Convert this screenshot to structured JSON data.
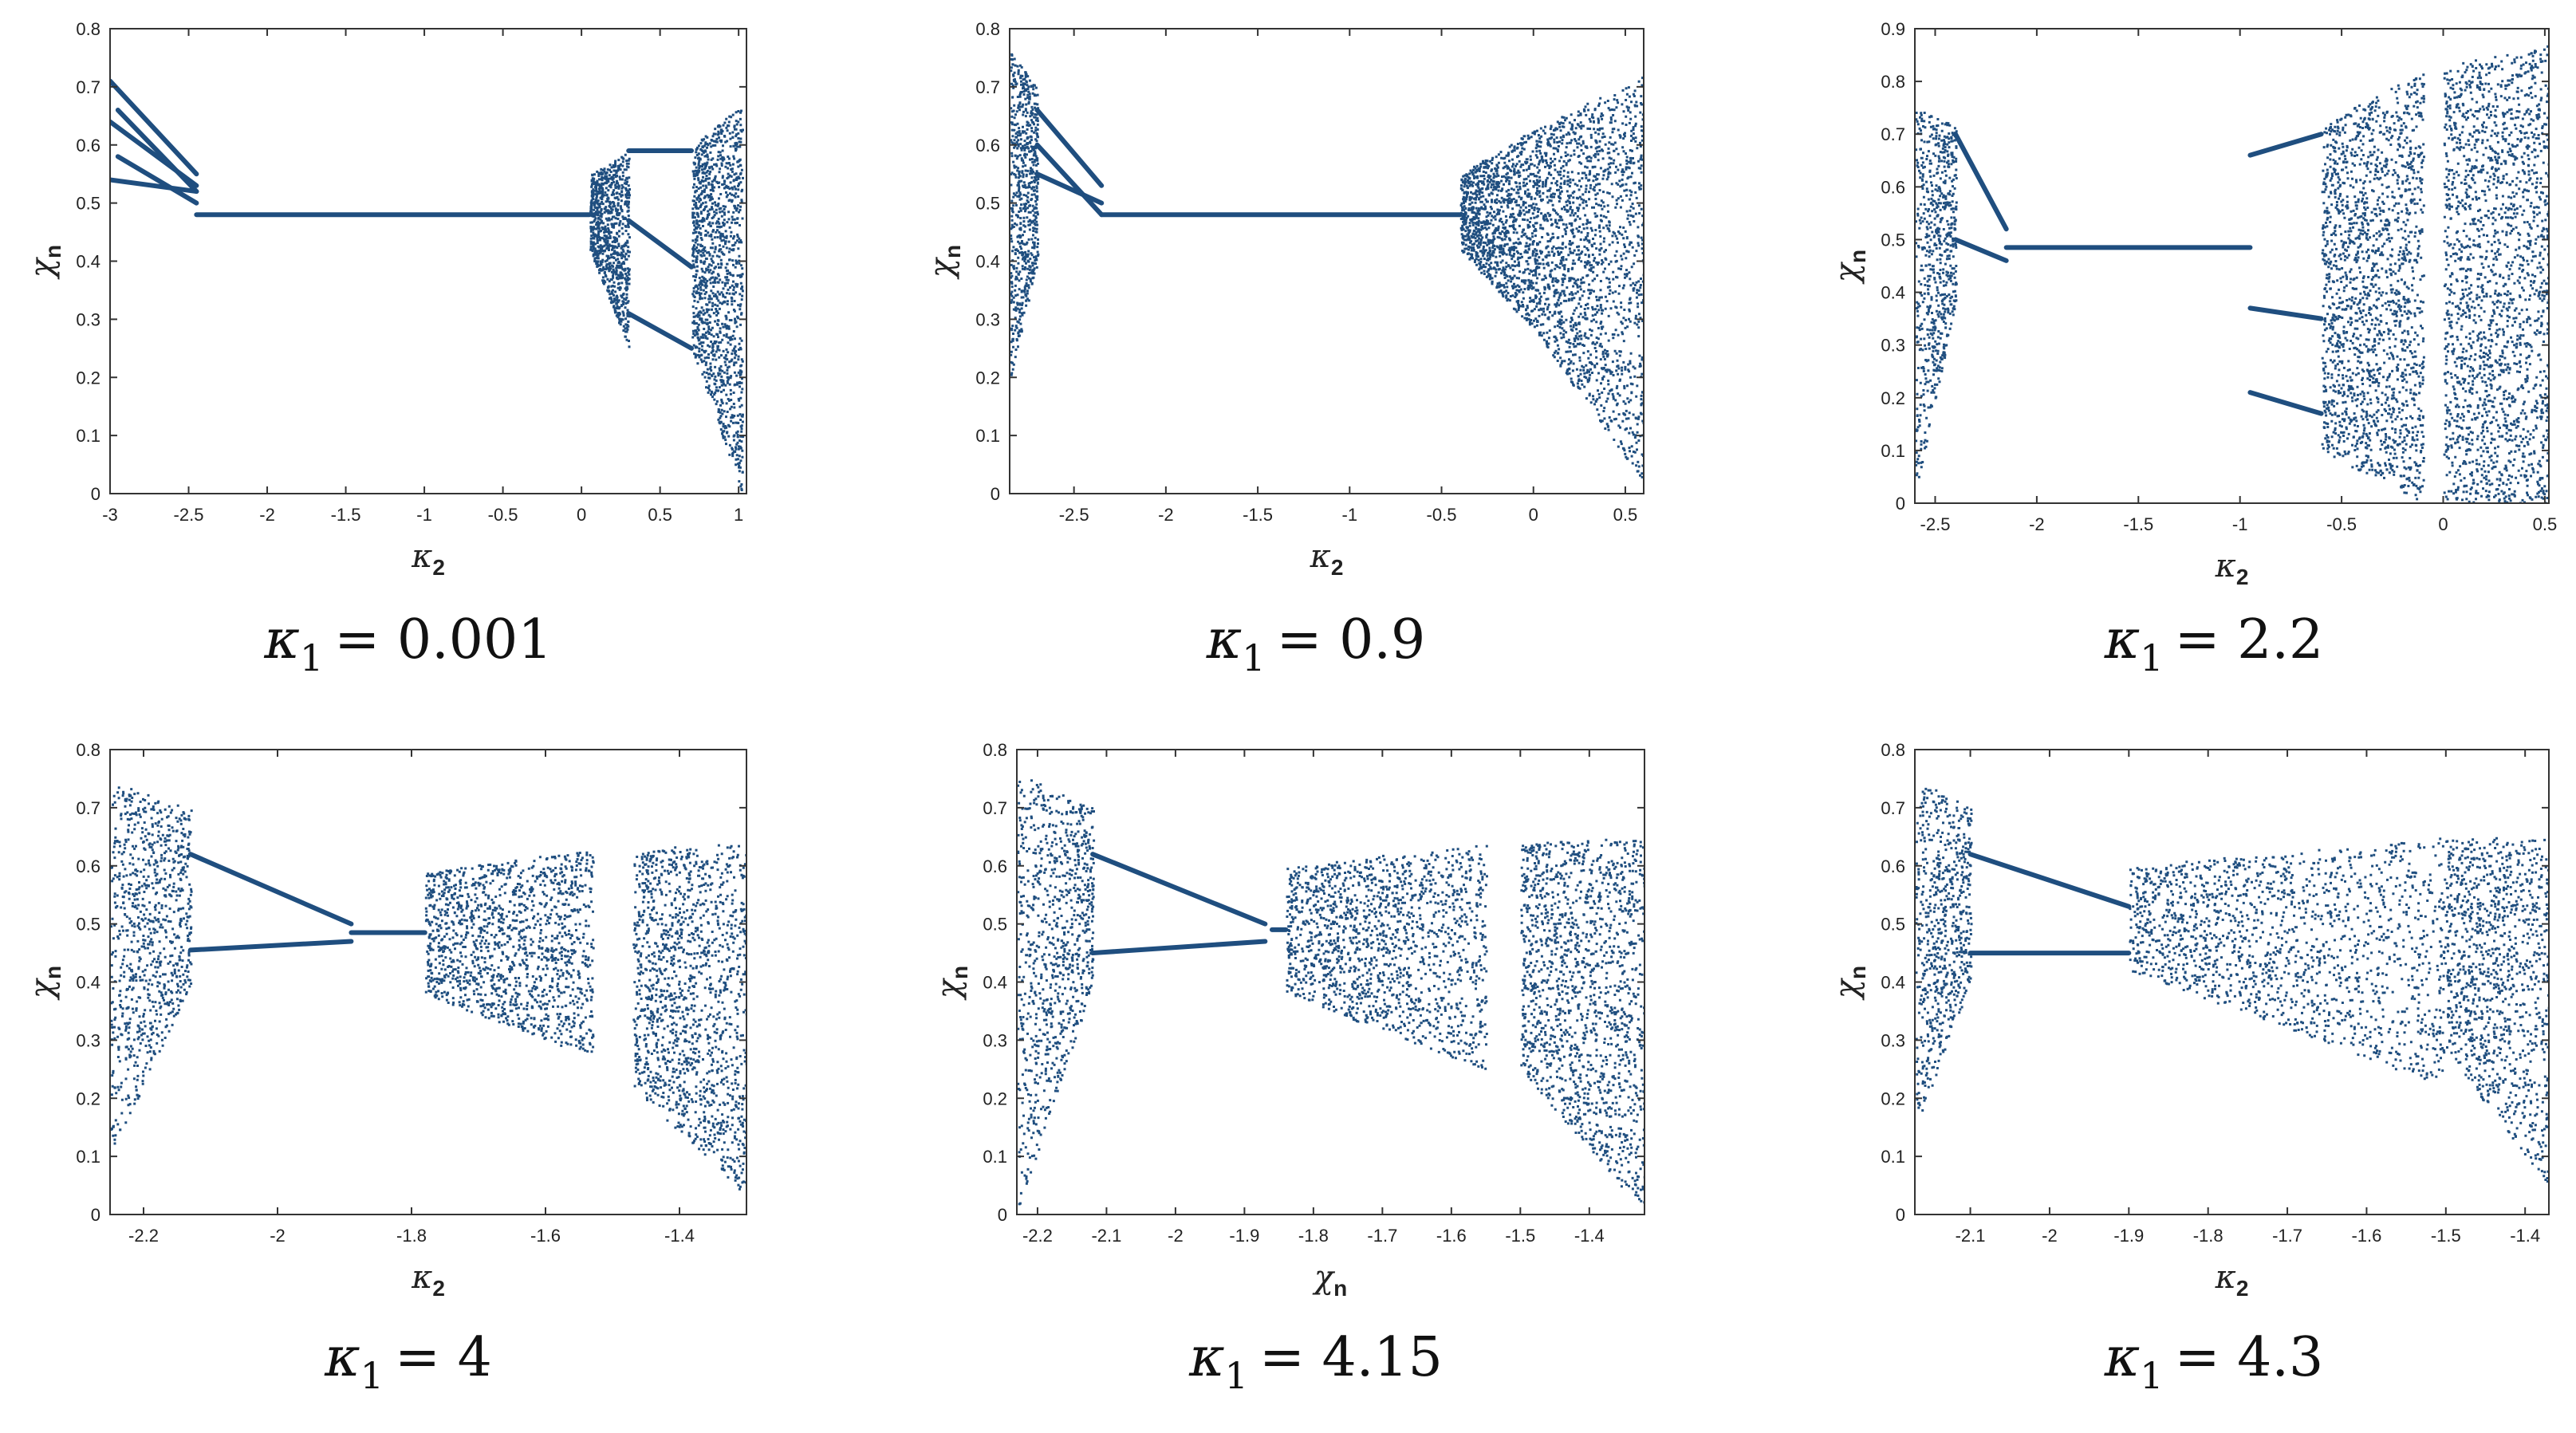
{
  "marker_color": "#1f4e7f",
  "chart_data": [
    {
      "type": "scatter",
      "caption": {
        "symbol": "κ",
        "sub": "1",
        "value": "= 0.001"
      },
      "xlabel": {
        "symbol": "κ",
        "sub": "2"
      },
      "ylabel": {
        "symbol": "χ",
        "sub": "n"
      },
      "xlim": [
        -3,
        1.05
      ],
      "ylim": [
        0,
        0.8
      ],
      "xticks": [
        -3,
        -2.5,
        -2,
        -1.5,
        -1,
        -0.5,
        0,
        0.5,
        1
      ],
      "xtick_labels": [
        "-3",
        "-2.5",
        "-2",
        "-1.5",
        "-1",
        "-0.5",
        "0",
        "0.5",
        "1"
      ],
      "yticks": [
        0,
        0.1,
        0.2,
        0.3,
        0.4,
        0.5,
        0.6,
        0.7,
        0.8
      ],
      "ytick_labels": [
        "0",
        "0.1",
        "0.2",
        "0.3",
        "0.4",
        "0.5",
        "0.6",
        "0.7",
        "0.8"
      ],
      "branches": [
        {
          "x": [
            -3,
            -2.45
          ],
          "y": [
            0.71,
            0.55
          ]
        },
        {
          "x": [
            -3,
            -2.45
          ],
          "y": [
            0.64,
            0.53
          ]
        },
        {
          "x": [
            -3,
            -2.45
          ],
          "y": [
            0.54,
            0.52
          ]
        },
        {
          "x": [
            -2.95,
            -2.45
          ],
          "y": [
            0.66,
            0.52
          ]
        },
        {
          "x": [
            -2.95,
            -2.45
          ],
          "y": [
            0.58,
            0.5
          ]
        },
        {
          "x": [
            -2.45,
            0.05
          ],
          "y": [
            0.48,
            0.48
          ]
        },
        {
          "x": [
            0.3,
            0.7
          ],
          "y": [
            0.59,
            0.59
          ]
        },
        {
          "x": [
            0.3,
            0.7
          ],
          "y": [
            0.47,
            0.39
          ]
        },
        {
          "x": [
            0.3,
            0.7
          ],
          "y": [
            0.31,
            0.25
          ]
        }
      ],
      "chaos": [
        {
          "x": [
            0.05,
            0.3
          ],
          "ymin": [
            0.42,
            0.25
          ],
          "ymax": [
            0.55,
            0.59
          ],
          "density": 900
        },
        {
          "x": [
            0.7,
            1.02
          ],
          "ymin": [
            0.25,
            0.0
          ],
          "ymax": [
            0.6,
            0.67
          ],
          "density": 1300
        }
      ]
    },
    {
      "type": "scatter",
      "caption": {
        "symbol": "κ",
        "sub": "1",
        "value": "= 0.9"
      },
      "xlabel": {
        "symbol": "κ",
        "sub": "2"
      },
      "ylabel": {
        "symbol": "χ",
        "sub": "n"
      },
      "xlim": [
        -2.85,
        0.6
      ],
      "ylim": [
        0,
        0.8
      ],
      "xticks": [
        -2.5,
        -2,
        -1.5,
        -1,
        -0.5,
        0,
        0.5
      ],
      "xtick_labels": [
        "-2.5",
        "-2",
        "-1.5",
        "-1",
        "-0.5",
        "0",
        "0.5"
      ],
      "yticks": [
        0,
        0.1,
        0.2,
        0.3,
        0.4,
        0.5,
        0.6,
        0.7,
        0.8
      ],
      "ytick_labels": [
        "0",
        "0.1",
        "0.2",
        "0.3",
        "0.4",
        "0.5",
        "0.6",
        "0.7",
        "0.8"
      ],
      "branches": [
        {
          "x": [
            -2.7,
            -2.35
          ],
          "y": [
            0.66,
            0.53
          ]
        },
        {
          "x": [
            -2.7,
            -2.35
          ],
          "y": [
            0.55,
            0.5
          ]
        },
        {
          "x": [
            -2.7,
            -2.35
          ],
          "y": [
            0.6,
            0.48
          ]
        },
        {
          "x": [
            -2.35,
            -0.4
          ],
          "y": [
            0.48,
            0.48
          ]
        }
      ],
      "chaos": [
        {
          "x": [
            -2.85,
            -2.7
          ],
          "ymin": [
            0.2,
            0.4
          ],
          "ymax": [
            0.76,
            0.7
          ],
          "density": 700
        },
        {
          "x": [
            -0.4,
            0.0
          ],
          "ymin": [
            0.42,
            0.28
          ],
          "ymax": [
            0.55,
            0.63
          ],
          "density": 1100
        },
        {
          "x": [
            0.0,
            0.6
          ],
          "ymin": [
            0.28,
            0.02
          ],
          "ymax": [
            0.63,
            0.72
          ],
          "density": 1700
        }
      ]
    },
    {
      "type": "scatter",
      "caption": {
        "symbol": "κ",
        "sub": "1",
        "value": "= 2.2"
      },
      "xlabel": {
        "symbol": "κ",
        "sub": "2"
      },
      "ylabel": {
        "symbol": "χ",
        "sub": "n"
      },
      "xlim": [
        -2.6,
        0.52
      ],
      "ylim": [
        0,
        0.9
      ],
      "xticks": [
        -2.5,
        -2,
        -1.5,
        -1,
        -0.5,
        0,
        0.5
      ],
      "xtick_labels": [
        "-2.5",
        "-2",
        "-1.5",
        "-1",
        "-0.5",
        "0",
        "0.5"
      ],
      "yticks": [
        0,
        0.1,
        0.2,
        0.3,
        0.4,
        0.5,
        0.6,
        0.7,
        0.8,
        0.9
      ],
      "ytick_labels": [
        "0",
        "0.1",
        "0.2",
        "0.3",
        "0.4",
        "0.5",
        "0.6",
        "0.7",
        "0.8",
        "0.9"
      ],
      "branches": [
        {
          "x": [
            -2.4,
            -2.15
          ],
          "y": [
            0.7,
            0.52
          ]
        },
        {
          "x": [
            -2.4,
            -2.15
          ],
          "y": [
            0.5,
            0.46
          ]
        },
        {
          "x": [
            -2.15,
            -0.95
          ],
          "y": [
            0.485,
            0.485
          ]
        },
        {
          "x": [
            -0.95,
            -0.6
          ],
          "y": [
            0.66,
            0.7
          ]
        },
        {
          "x": [
            -0.95,
            -0.6
          ],
          "y": [
            0.37,
            0.35
          ]
        },
        {
          "x": [
            -0.95,
            -0.6
          ],
          "y": [
            0.21,
            0.17
          ]
        }
      ],
      "chaos": [
        {
          "x": [
            -2.6,
            -2.4
          ],
          "ymin": [
            0.02,
            0.38
          ],
          "ymax": [
            0.75,
            0.72
          ],
          "density": 700
        },
        {
          "x": [
            -0.6,
            -0.1
          ],
          "ymin": [
            0.1,
            0.0
          ],
          "ymax": [
            0.72,
            0.82
          ],
          "density": 1800
        },
        {
          "x": [
            0.0,
            0.52
          ],
          "ymin": [
            0.0,
            0.0
          ],
          "ymax": [
            0.83,
            0.87
          ],
          "density": 1900
        }
      ]
    },
    {
      "type": "scatter",
      "caption": {
        "symbol": "κ",
        "sub": "1",
        "value": "= 4"
      },
      "xlabel": {
        "symbol": "κ",
        "sub": "2"
      },
      "ylabel": {
        "symbol": "χ",
        "sub": "n"
      },
      "xlim": [
        -2.25,
        -1.3
      ],
      "ylim": [
        0,
        0.8
      ],
      "xticks": [
        -2.2,
        -2,
        -1.8,
        -1.6,
        -1.4
      ],
      "xtick_labels": [
        "-2.2",
        "-2",
        "-1.8",
        "-1.6",
        "-1.4"
      ],
      "yticks": [
        0,
        0.1,
        0.2,
        0.3,
        0.4,
        0.5,
        0.6,
        0.7,
        0.8
      ],
      "ytick_labels": [
        "0",
        "0.1",
        "0.2",
        "0.3",
        "0.4",
        "0.5",
        "0.6",
        "0.7",
        "0.8"
      ],
      "branches": [
        {
          "x": [
            -2.13,
            -1.89
          ],
          "y": [
            0.62,
            0.5
          ]
        },
        {
          "x": [
            -2.13,
            -1.89
          ],
          "y": [
            0.455,
            0.47
          ]
        },
        {
          "x": [
            -1.89,
            -1.78
          ],
          "y": [
            0.485,
            0.485
          ]
        }
      ],
      "chaos": [
        {
          "x": [
            -2.25,
            -2.13
          ],
          "ymin": [
            0.1,
            0.4
          ],
          "ymax": [
            0.75,
            0.7
          ],
          "density": 900
        },
        {
          "x": [
            -1.78,
            -1.53
          ],
          "ymin": [
            0.38,
            0.27
          ],
          "ymax": [
            0.59,
            0.63
          ],
          "density": 1400
        },
        {
          "x": [
            -1.47,
            -1.3
          ],
          "ymin": [
            0.22,
            0.03
          ],
          "ymax": [
            0.63,
            0.64
          ],
          "density": 1400
        }
      ]
    },
    {
      "type": "scatter",
      "caption": {
        "symbol": "κ",
        "sub": "1",
        "value": "= 4.15"
      },
      "xlabel": {
        "symbol": "χ",
        "sub": "n"
      },
      "ylabel": {
        "symbol": "χ",
        "sub": "n"
      },
      "xlim": [
        -2.23,
        -1.32
      ],
      "ylim": [
        0,
        0.8
      ],
      "xticks": [
        -2.2,
        -2.1,
        -2,
        -1.9,
        -1.8,
        -1.7,
        -1.6,
        -1.5,
        -1.4
      ],
      "xtick_labels": [
        "-2.2",
        "-2.1",
        "-2",
        "-1.9",
        "-1.8",
        "-1.7",
        "-1.6",
        "-1.5",
        "-1.4"
      ],
      "yticks": [
        0,
        0.1,
        0.2,
        0.3,
        0.4,
        0.5,
        0.6,
        0.7,
        0.8
      ],
      "ytick_labels": [
        "0",
        "0.1",
        "0.2",
        "0.3",
        "0.4",
        "0.5",
        "0.6",
        "0.7",
        "0.8"
      ],
      "branches": [
        {
          "x": [
            -2.12,
            -1.87
          ],
          "y": [
            0.62,
            0.5
          ]
        },
        {
          "x": [
            -2.12,
            -1.87
          ],
          "y": [
            0.45,
            0.47
          ]
        },
        {
          "x": [
            -1.86,
            -1.84
          ],
          "y": [
            0.49,
            0.49
          ]
        }
      ],
      "chaos": [
        {
          "x": [
            -2.23,
            -2.12
          ],
          "ymin": [
            0.0,
            0.4
          ],
          "ymax": [
            0.76,
            0.7
          ],
          "density": 900
        },
        {
          "x": [
            -1.84,
            -1.55
          ],
          "ymin": [
            0.38,
            0.25
          ],
          "ymax": [
            0.6,
            0.64
          ],
          "density": 1500
        },
        {
          "x": [
            -1.5,
            -1.32
          ],
          "ymin": [
            0.25,
            0.0
          ],
          "ymax": [
            0.64,
            0.65
          ],
          "density": 1500
        }
      ]
    },
    {
      "type": "scatter",
      "caption": {
        "symbol": "κ",
        "sub": "1",
        "value": "= 4.3"
      },
      "xlabel": {
        "symbol": "κ",
        "sub": "2"
      },
      "ylabel": {
        "symbol": "χ",
        "sub": "n"
      },
      "xlim": [
        -2.17,
        -1.37
      ],
      "ylim": [
        0,
        0.8
      ],
      "xticks": [
        -2.1,
        -2,
        -1.9,
        -1.8,
        -1.7,
        -1.6,
        -1.5,
        -1.4
      ],
      "xtick_labels": [
        "-2.1",
        "-2",
        "-1.9",
        "-1.8",
        "-1.7",
        "-1.6",
        "-1.5",
        "-1.4"
      ],
      "yticks": [
        0,
        0.1,
        0.2,
        0.3,
        0.4,
        0.5,
        0.6,
        0.7,
        0.8
      ],
      "ytick_labels": [
        "0",
        "0.1",
        "0.2",
        "0.3",
        "0.4",
        "0.5",
        "0.6",
        "0.7",
        "0.8"
      ],
      "branches": [
        {
          "x": [
            -2.1,
            -1.9
          ],
          "y": [
            0.62,
            0.53
          ]
        },
        {
          "x": [
            -2.1,
            -1.9
          ],
          "y": [
            0.45,
            0.45
          ]
        }
      ],
      "chaos": [
        {
          "x": [
            -2.17,
            -2.1
          ],
          "ymin": [
            0.15,
            0.4
          ],
          "ymax": [
            0.75,
            0.7
          ],
          "density": 700
        },
        {
          "x": [
            -1.9,
            -1.5
          ],
          "ymin": [
            0.42,
            0.22
          ],
          "ymax": [
            0.6,
            0.65
          ],
          "density": 1600
        },
        {
          "x": [
            -1.5,
            -1.37
          ],
          "ymin": [
            0.28,
            0.05
          ],
          "ymax": [
            0.65,
            0.65
          ],
          "density": 1100
        }
      ]
    }
  ]
}
